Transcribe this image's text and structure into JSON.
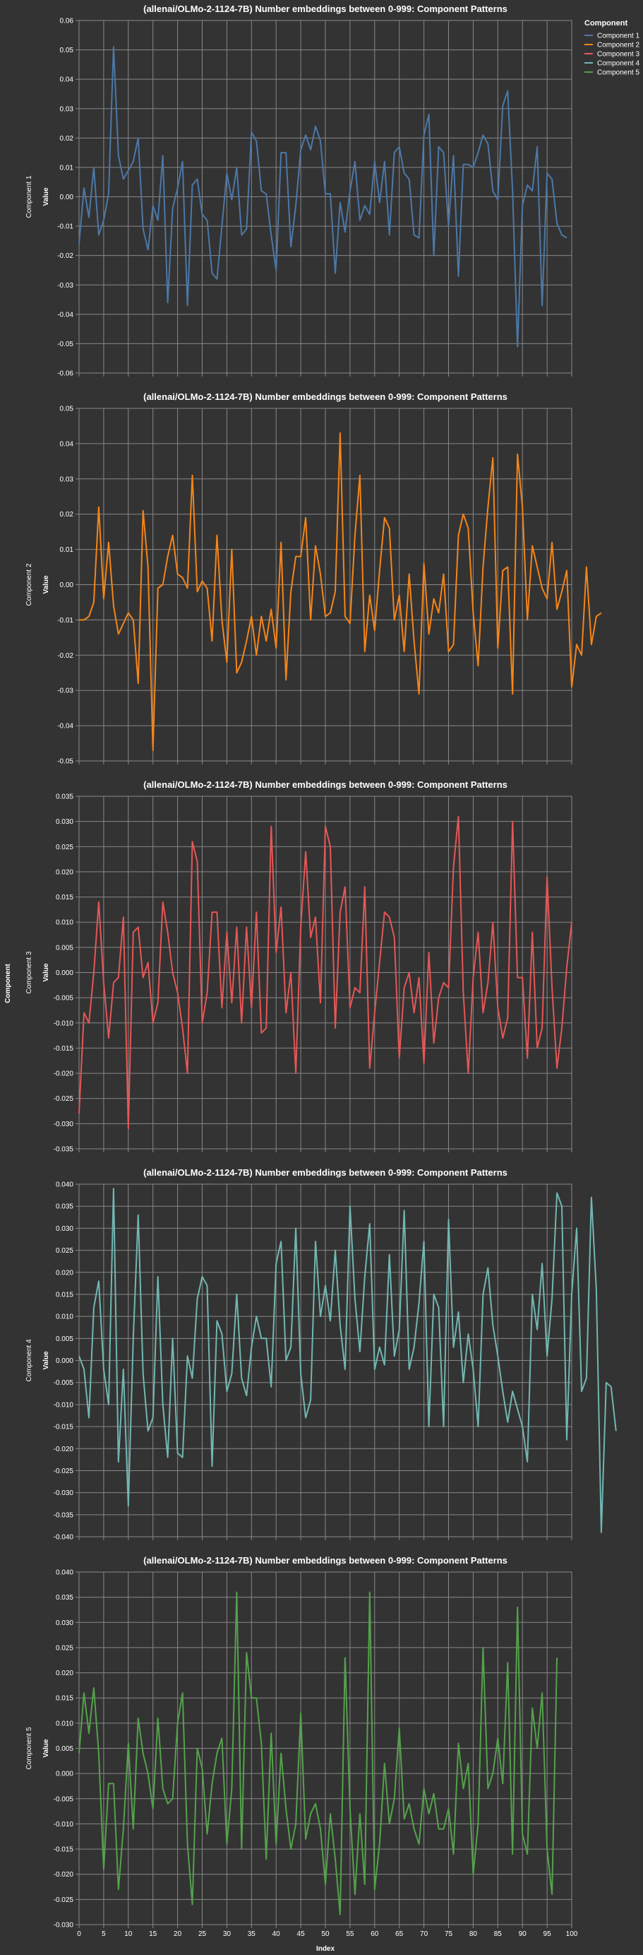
{
  "colors": {
    "background": "#333333",
    "grid": "#888888",
    "text": "#ffffff"
  },
  "shared": {
    "row_axis_title": "Component",
    "x_axis_title": "Index",
    "y_axis_title": "Value",
    "x_range": [
      0,
      100
    ],
    "x_ticks": [
      "0",
      "5",
      "10",
      "15",
      "20",
      "25",
      "30",
      "35",
      "40",
      "45",
      "50",
      "55",
      "60",
      "65",
      "70",
      "75",
      "80",
      "85",
      "90",
      "95",
      "100"
    ]
  },
  "legend": {
    "title": "Component",
    "items": [
      {
        "label": "Component 1",
        "color": "#4c78a8"
      },
      {
        "label": "Component 2",
        "color": "#f58518"
      },
      {
        "label": "Component 3",
        "color": "#e45756"
      },
      {
        "label": "Component 4",
        "color": "#72b7b2"
      },
      {
        "label": "Component 5",
        "color": "#54a24b"
      }
    ]
  },
  "chart_data": [
    {
      "type": "line",
      "title": "(allenai/OLMo-2-1124-7B) Number embeddings between 0-999: Component Patterns",
      "row_label": "Component 1",
      "ylabel": "Value",
      "series_name": "Component 1",
      "color": "#4c78a8",
      "ylim": [
        -0.06,
        0.06
      ],
      "y_ticks": [
        "-0.06",
        "-0.05",
        "-0.04",
        "-0.03",
        "-0.02",
        "-0.01",
        "0.00",
        "0.01",
        "0.02",
        "0.03",
        "0.04",
        "0.05",
        "0.06"
      ],
      "tick_values": [
        -0.06,
        -0.05,
        -0.04,
        -0.03,
        -0.02,
        -0.01,
        0,
        0.01,
        0.02,
        0.03,
        0.04,
        0.05,
        0.06
      ],
      "values": [
        -0.016,
        0.003,
        -0.007,
        0.01,
        -0.013,
        -0.008,
        0.001,
        0.051,
        0.014,
        0.006,
        0.009,
        0.012,
        0.02,
        -0.011,
        -0.018,
        -0.003,
        -0.008,
        0.014,
        -0.036,
        -0.004,
        0.003,
        0.012,
        -0.037,
        0.004,
        0.006,
        -0.006,
        -0.008,
        -0.026,
        -0.028,
        -0.01,
        0.008,
        -0.001,
        0.01,
        -0.013,
        -0.011,
        0.022,
        0.019,
        0.002,
        0.001,
        -0.013,
        -0.025,
        0.015,
        0.015,
        -0.017,
        -0.003,
        0.016,
        0.021,
        0.016,
        0.024,
        0.019,
        0.001,
        0.001,
        -0.026,
        -0.002,
        -0.012,
        0.002,
        0.012,
        -0.008,
        -0.003,
        -0.006,
        0.012,
        -0.002,
        0.012,
        -0.013,
        0.015,
        0.017,
        0.008,
        0.006,
        -0.013,
        -0.014,
        0.021,
        0.028,
        -0.02,
        0.017,
        0.015,
        -0.01,
        0.014,
        -0.027,
        0.011,
        0.011,
        0.01,
        0.015,
        0.021,
        0.018,
        0.002,
        -0.001,
        0.031,
        0.036,
        0.002,
        -0.051,
        -0.003,
        0.004,
        0.002,
        0.017,
        -0.037,
        0.008,
        0.006,
        -0.009,
        -0.013,
        -0.014
      ]
    },
    {
      "type": "line",
      "title": "(allenai/OLMo-2-1124-7B) Number embeddings between 0-999: Component Patterns",
      "row_label": "Component 2",
      "ylabel": "Value",
      "series_name": "Component 2",
      "color": "#f58518",
      "ylim": [
        -0.05,
        0.05
      ],
      "y_ticks": [
        "-0.05",
        "-0.04",
        "-0.03",
        "-0.02",
        "-0.01",
        "0.00",
        "0.01",
        "0.02",
        "0.03",
        "0.04",
        "0.05"
      ],
      "tick_values": [
        -0.05,
        -0.04,
        -0.03,
        -0.02,
        -0.01,
        0,
        0.01,
        0.02,
        0.03,
        0.04,
        0.05
      ],
      "values": [
        -0.01,
        -0.01,
        -0.009,
        -0.005,
        0.022,
        -0.004,
        0.012,
        -0.006,
        -0.014,
        -0.011,
        -0.008,
        -0.01,
        -0.028,
        0.021,
        0.005,
        -0.047,
        -0.001,
        0.0,
        0.008,
        0.014,
        0.003,
        0.002,
        -0.001,
        0.031,
        -0.002,
        0.001,
        -0.001,
        -0.016,
        0.014,
        -0.01,
        -0.022,
        0.01,
        -0.025,
        -0.022,
        -0.016,
        -0.009,
        -0.02,
        -0.009,
        -0.016,
        -0.007,
        -0.018,
        0.012,
        -0.027,
        -0.002,
        0.008,
        0.008,
        0.019,
        -0.01,
        0.011,
        0.003,
        -0.009,
        -0.008,
        -0.002,
        0.043,
        -0.009,
        -0.011,
        0.014,
        0.031,
        -0.019,
        -0.003,
        -0.013,
        0.004,
        0.019,
        0.016,
        -0.01,
        -0.003,
        -0.019,
        0.003,
        -0.016,
        -0.031,
        0.006,
        -0.014,
        -0.004,
        -0.008,
        0.003,
        -0.019,
        -0.017,
        0.014,
        0.02,
        0.016,
        -0.008,
        -0.023,
        0.005,
        0.022,
        0.036,
        -0.018,
        0.004,
        0.005,
        -0.031,
        0.037,
        0.022,
        -0.01,
        0.011,
        0.005,
        -0.001,
        -0.004,
        0.012,
        -0.007,
        -0.002,
        0.004,
        -0.029,
        -0.017,
        -0.02,
        0.005,
        -0.017,
        -0.009,
        -0.008
      ]
    },
    {
      "type": "line",
      "title": "(allenai/OLMo-2-1124-7B) Number embeddings between 0-999: Component Patterns",
      "row_label": "Component 3",
      "ylabel": "Value",
      "series_name": "Component 3",
      "color": "#e45756",
      "ylim": [
        -0.035,
        0.035
      ],
      "y_ticks": [
        "-0.035",
        "-0.030",
        "-0.025",
        "-0.020",
        "-0.015",
        "-0.010",
        "-0.005",
        "0.000",
        "0.005",
        "0.010",
        "0.015",
        "0.020",
        "0.025",
        "0.030",
        "0.035"
      ],
      "tick_values": [
        -0.035,
        -0.03,
        -0.025,
        -0.02,
        -0.015,
        -0.01,
        -0.005,
        0,
        0.005,
        0.01,
        0.015,
        0.02,
        0.025,
        0.03,
        0.035
      ],
      "values": [
        -0.028,
        -0.008,
        -0.01,
        0.0,
        0.014,
        -0.002,
        -0.013,
        -0.002,
        -0.001,
        0.011,
        -0.031,
        0.008,
        0.009,
        -0.001,
        0.002,
        -0.01,
        -0.006,
        0.014,
        0.008,
        0.0,
        -0.004,
        -0.011,
        -0.02,
        0.026,
        0.022,
        -0.01,
        -0.004,
        0.012,
        0.012,
        -0.007,
        0.008,
        -0.006,
        0.009,
        -0.01,
        0.009,
        -0.007,
        0.012,
        -0.012,
        -0.011,
        0.029,
        0.004,
        0.013,
        -0.008,
        0.0,
        -0.02,
        0.009,
        0.024,
        0.007,
        0.011,
        -0.006,
        0.029,
        0.025,
        -0.011,
        0.012,
        0.017,
        -0.007,
        -0.003,
        -0.004,
        0.017,
        -0.019,
        -0.008,
        0.002,
        0.012,
        0.011,
        0.007,
        -0.017,
        -0.003,
        0.0,
        -0.008,
        -0.001,
        -0.018,
        0.004,
        -0.014,
        -0.005,
        -0.002,
        -0.003,
        0.021,
        0.031,
        -0.004,
        -0.02,
        -0.001,
        0.008,
        -0.008,
        -0.002,
        0.01,
        -0.007,
        -0.013,
        -0.009,
        0.03,
        -0.001,
        -0.001,
        -0.017,
        0.008,
        -0.015,
        -0.011,
        0.019,
        -0.003,
        -0.019,
        -0.011,
        0.001,
        0.01
      ]
    },
    {
      "type": "line",
      "title": "(allenai/OLMo-2-1124-7B) Number embeddings between 0-999: Component Patterns",
      "row_label": "Component 4",
      "ylabel": "Value",
      "series_name": "Component 4",
      "color": "#72b7b2",
      "ylim": [
        -0.04,
        0.04
      ],
      "y_ticks": [
        "-0.040",
        "-0.035",
        "-0.030",
        "-0.025",
        "-0.020",
        "-0.015",
        "-0.010",
        "-0.005",
        "0.000",
        "0.005",
        "0.010",
        "0.015",
        "0.020",
        "0.025",
        "0.030",
        "0.035",
        "0.040"
      ],
      "tick_values": [
        -0.04,
        -0.035,
        -0.03,
        -0.025,
        -0.02,
        -0.015,
        -0.01,
        -0.005,
        0,
        0.005,
        0.01,
        0.015,
        0.02,
        0.025,
        0.03,
        0.035,
        0.04
      ],
      "values": [
        0.001,
        -0.002,
        -0.013,
        0.012,
        0.018,
        -0.002,
        -0.01,
        0.039,
        -0.023,
        -0.002,
        -0.033,
        0.005,
        0.033,
        -0.003,
        -0.016,
        -0.013,
        0.019,
        -0.01,
        -0.022,
        0.005,
        -0.021,
        -0.022,
        0.001,
        -0.004,
        0.014,
        0.019,
        0.017,
        -0.024,
        0.009,
        0.006,
        -0.007,
        -0.003,
        0.015,
        -0.004,
        -0.008,
        0.003,
        0.01,
        0.005,
        0.005,
        -0.006,
        0.022,
        0.027,
        -0.0,
        0.003,
        0.03,
        -0.003,
        -0.013,
        -0.009,
        0.027,
        0.01,
        0.017,
        0.009,
        0.025,
        0.008,
        -0.002,
        0.035,
        0.014,
        0.002,
        0.019,
        0.031,
        -0.002,
        0.003,
        -0.001,
        0.024,
        0.001,
        0.007,
        0.034,
        -0.002,
        0.003,
        0.013,
        0.027,
        -0.015,
        0.015,
        0.012,
        -0.015,
        0.032,
        0.003,
        0.011,
        -0.005,
        0.006,
        -0.002,
        -0.015,
        0.015,
        0.021,
        0.008,
        0.001,
        -0.007,
        -0.014,
        -0.007,
        -0.011,
        -0.015,
        -0.023,
        0.015,
        0.007,
        0.022,
        0.001,
        0.014,
        0.038,
        0.035,
        -0.018,
        0.015,
        0.03,
        -0.007,
        -0.004,
        0.037,
        0.016,
        -0.039,
        -0.005,
        -0.006,
        -0.016
      ]
    },
    {
      "type": "line",
      "title": "(allenai/OLMo-2-1124-7B) Number embeddings between 0-999: Component Patterns",
      "row_label": "Component 5",
      "ylabel": "Value",
      "series_name": "Component 5",
      "color": "#54a24b",
      "ylim": [
        -0.03,
        0.04
      ],
      "y_ticks": [
        "-0.030",
        "-0.025",
        "-0.020",
        "-0.015",
        "-0.010",
        "-0.005",
        "0.000",
        "0.005",
        "0.010",
        "0.015",
        "0.020",
        "0.025",
        "0.030",
        "0.035",
        "0.040"
      ],
      "tick_values": [
        -0.03,
        -0.025,
        -0.02,
        -0.015,
        -0.01,
        -0.005,
        0,
        0.005,
        0.01,
        0.015,
        0.02,
        0.025,
        0.03,
        0.035,
        0.04
      ],
      "values": [
        0.004,
        0.016,
        0.008,
        0.017,
        0.004,
        -0.019,
        -0.002,
        -0.002,
        -0.023,
        -0.011,
        0.006,
        -0.011,
        0.011,
        0.004,
        0.0,
        -0.007,
        0.011,
        -0.003,
        -0.006,
        -0.005,
        0.01,
        0.016,
        -0.014,
        -0.026,
        0.005,
        0.001,
        -0.012,
        -0.002,
        0.004,
        0.007,
        -0.014,
        -0.003,
        0.036,
        -0.015,
        0.024,
        0.015,
        0.015,
        0.006,
        -0.017,
        0.008,
        -0.014,
        0.004,
        -0.007,
        -0.015,
        -0.01,
        0.012,
        -0.013,
        -0.008,
        -0.006,
        -0.011,
        -0.022,
        -0.008,
        -0.017,
        -0.028,
        0.023,
        -0.007,
        -0.024,
        -0.008,
        -0.022,
        0.036,
        -0.023,
        -0.014,
        0.002,
        -0.01,
        -0.005,
        0.009,
        -0.009,
        -0.006,
        -0.011,
        -0.014,
        -0.003,
        -0.008,
        -0.004,
        -0.011,
        -0.011,
        -0.007,
        -0.016,
        0.006,
        -0.003,
        0.002,
        -0.02,
        -0.01,
        0.025,
        -0.003,
        0.0,
        0.007,
        -0.002,
        0.022,
        -0.016,
        0.033,
        -0.012,
        -0.016,
        0.013,
        0.005,
        0.016,
        -0.015,
        -0.024,
        0.023
      ]
    }
  ]
}
